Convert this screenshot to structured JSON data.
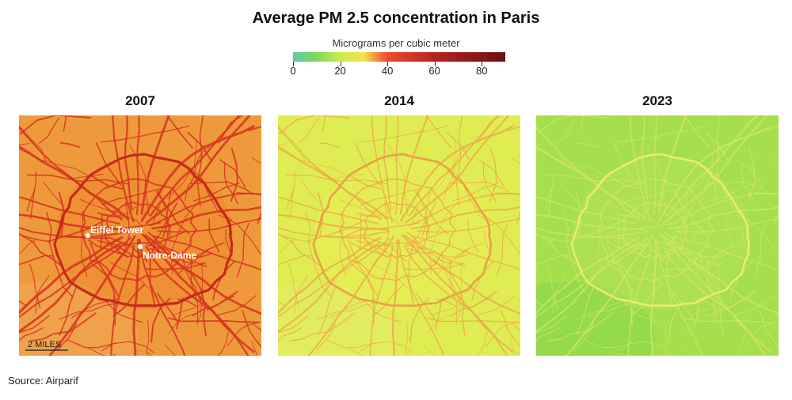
{
  "title": "Average PM 2.5 concentration in Paris",
  "legend": {
    "label": "Micrograms per cubic meter",
    "ticks": [
      {
        "value": 0,
        "label": "0"
      },
      {
        "value": 20,
        "label": "20"
      },
      {
        "value": 40,
        "label": "40"
      },
      {
        "value": 60,
        "label": "60"
      },
      {
        "value": 80,
        "label": "80"
      }
    ],
    "max_value": 90,
    "color_stops": [
      {
        "value": 0,
        "color": "#5ec9a8"
      },
      {
        "value": 10,
        "color": "#7fd85a"
      },
      {
        "value": 20,
        "color": "#c8ec4c"
      },
      {
        "value": 30,
        "color": "#f6e04a"
      },
      {
        "value": 40,
        "color": "#ef4a2e"
      },
      {
        "value": 60,
        "color": "#b5231f"
      },
      {
        "value": 90,
        "color": "#6b1010"
      }
    ]
  },
  "panels": [
    {
      "year": "2007",
      "background_color": "#ee9a3c",
      "road_color": "#d3331f",
      "ring_color": "#c42a1a"
    },
    {
      "year": "2014",
      "background_color": "#dfec52",
      "road_color": "#eba14a",
      "ring_color": "#e8a247"
    },
    {
      "year": "2023",
      "background_color": "#a5df4c",
      "road_color": "#d6e766",
      "ring_color": "#e8ec72"
    }
  ],
  "landmarks": [
    {
      "name": "Eiffel Tower"
    },
    {
      "name": "Notre-Dame"
    }
  ],
  "scale_bar": {
    "label": "2 MILES"
  },
  "source": "Source: Airparif"
}
